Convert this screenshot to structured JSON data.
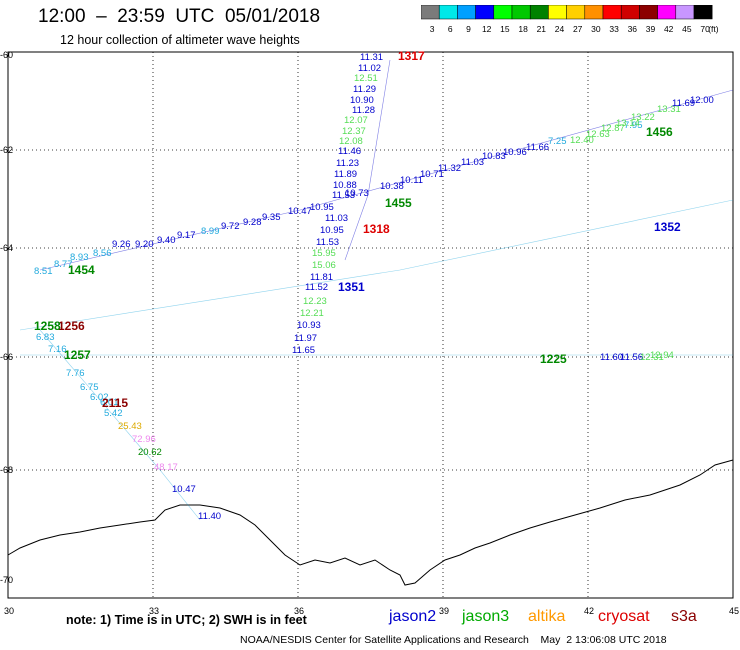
{
  "header": {
    "title": "12:00  –  23:59  UTC  05/01/2018",
    "subtitle": "12 hour collection of altimeter wave heights"
  },
  "colorbar": {
    "unit": "(ft)",
    "labels": [
      "3",
      "6",
      "9",
      "12",
      "15",
      "18",
      "21",
      "24",
      "27",
      "30",
      "33",
      "36",
      "39",
      "42",
      "45",
      "70"
    ],
    "colors": [
      "#7b7b7b",
      "#00e8e8",
      "#00a0ff",
      "#0000ff",
      "#00ff00",
      "#00c800",
      "#008200",
      "#ffff00",
      "#ffd000",
      "#ff9000",
      "#ff0000",
      "#d00000",
      "#8c0000",
      "#ff00ff",
      "#c896ff",
      "#000000"
    ]
  },
  "map": {
    "lat_labels": [
      "-60",
      "-62",
      "-64",
      "-66",
      "-68",
      "-70"
    ],
    "lon_labels": [
      "30",
      "33",
      "36",
      "39",
      "42",
      "45"
    ],
    "values": [
      {
        "t": "11.31",
        "c": "#0000cc"
      },
      {
        "t": "11.02",
        "c": "#0000cc"
      },
      {
        "t": "12.51",
        "c": "#55dd55"
      },
      {
        "t": "11.29",
        "c": "#0000cc"
      },
      {
        "t": "10.90",
        "c": "#0000cc"
      },
      {
        "t": "11.28",
        "c": "#0000cc"
      },
      {
        "t": "12.07",
        "c": "#55dd55"
      },
      {
        "t": "12.37",
        "c": "#55dd55"
      },
      {
        "t": "12.08",
        "c": "#55dd55"
      },
      {
        "t": "11.46",
        "c": "#0000cc"
      },
      {
        "t": "11.23",
        "c": "#0000cc"
      },
      {
        "t": "11.89",
        "c": "#0000cc"
      },
      {
        "t": "10.88",
        "c": "#0000cc"
      },
      {
        "t": "11.53",
        "c": "#0000cc"
      },
      {
        "t": "11.03",
        "c": "#0000cc"
      },
      {
        "t": "10.95",
        "c": "#0000cc"
      },
      {
        "t": "11.53",
        "c": "#0000cc"
      },
      {
        "t": "15.95",
        "c": "#55dd55"
      },
      {
        "t": "15.06",
        "c": "#55dd55"
      },
      {
        "t": "11.81",
        "c": "#0000cc"
      },
      {
        "t": "11.52",
        "c": "#0000cc"
      },
      {
        "t": "12.23",
        "c": "#55dd55"
      },
      {
        "t": "12.21",
        "c": "#55dd55"
      },
      {
        "t": "10.93",
        "c": "#0000cc"
      },
      {
        "t": "11.97",
        "c": "#0000cc"
      },
      {
        "t": "11.65",
        "c": "#0000cc"
      },
      {
        "t": "8.51",
        "c": "#22aadd"
      },
      {
        "t": "8.77",
        "c": "#22aadd"
      },
      {
        "t": "8.93",
        "c": "#22aadd"
      },
      {
        "t": "8.56",
        "c": "#22aadd"
      },
      {
        "t": "9.26",
        "c": "#0000cc"
      },
      {
        "t": "9.20",
        "c": "#0000cc"
      },
      {
        "t": "9.40",
        "c": "#0000cc"
      },
      {
        "t": "9.17",
        "c": "#0000cc"
      },
      {
        "t": "8.99",
        "c": "#22aadd"
      },
      {
        "t": "9.72",
        "c": "#0000cc"
      },
      {
        "t": "9.28",
        "c": "#0000cc"
      },
      {
        "t": "9.35",
        "c": "#0000cc"
      },
      {
        "t": "10.47",
        "c": "#0000cc"
      },
      {
        "t": "10.95",
        "c": "#0000cc"
      },
      {
        "t": "10.73",
        "c": "#0000cc"
      },
      {
        "t": "10.38",
        "c": "#0000cc"
      },
      {
        "t": "10.11",
        "c": "#0000cc"
      },
      {
        "t": "10.71",
        "c": "#0000cc"
      },
      {
        "t": "11.32",
        "c": "#0000cc"
      },
      {
        "t": "11.03",
        "c": "#0000cc"
      },
      {
        "t": "10.83",
        "c": "#0000cc"
      },
      {
        "t": "10.96",
        "c": "#0000cc"
      },
      {
        "t": "11.66",
        "c": "#0000cc"
      },
      {
        "t": "7.25",
        "c": "#22aadd"
      },
      {
        "t": "7.95",
        "c": "#22aadd"
      },
      {
        "t": "6.83",
        "c": "#22aadd"
      },
      {
        "t": "7.16",
        "c": "#22aadd"
      },
      {
        "t": "7.76",
        "c": "#22aadd"
      },
      {
        "t": "6.75",
        "c": "#22aadd"
      },
      {
        "t": "6.02",
        "c": "#22aadd"
      },
      {
        "t": "6.01",
        "c": "#22aadd"
      },
      {
        "t": "5.42",
        "c": "#22aadd"
      },
      {
        "t": "25.43",
        "c": "#ddaa00"
      },
      {
        "t": "72.96",
        "c": "#ee88ee"
      },
      {
        "t": "20.62",
        "c": "#008800"
      },
      {
        "t": "48.17",
        "c": "#ee88ee"
      },
      {
        "t": "10.47",
        "c": "#0000cc"
      },
      {
        "t": "11.40",
        "c": "#0000cc"
      },
      {
        "t": "11.60",
        "c": "#0000cc"
      },
      {
        "t": "11.56",
        "c": "#0000cc"
      },
      {
        "t": "12.31",
        "c": "#55dd55"
      },
      {
        "t": "12.94",
        "c": "#55dd55"
      },
      {
        "t": "12.40",
        "c": "#55dd55"
      },
      {
        "t": "12.63",
        "c": "#55dd55"
      },
      {
        "t": "12.87",
        "c": "#55dd55"
      },
      {
        "t": "13.14",
        "c": "#55dd55"
      },
      {
        "t": "13.22",
        "c": "#55dd55"
      },
      {
        "t": "13.31",
        "c": "#55dd55"
      },
      {
        "t": "11.69",
        "c": "#0000cc"
      },
      {
        "t": "12.00",
        "c": "#0000cc"
      }
    ],
    "passes": [
      {
        "t": "1317",
        "c": "#dd0000"
      },
      {
        "t": "1318",
        "c": "#dd0000"
      },
      {
        "t": "1455",
        "c": "#008800"
      },
      {
        "t": "1454",
        "c": "#008800"
      },
      {
        "t": "1456",
        "c": "#008800"
      },
      {
        "t": "1352",
        "c": "#0000cc"
      },
      {
        "t": "1351",
        "c": "#0000cc"
      },
      {
        "t": "1257",
        "c": "#008800"
      },
      {
        "t": "1256",
        "c": "#8b0000"
      },
      {
        "t": "1258",
        "c": "#008800"
      },
      {
        "t": "1225",
        "c": "#008800"
      },
      {
        "t": "2115",
        "c": "#8b0000"
      }
    ]
  },
  "footer": {
    "note": "note:  1) Time is in UTC;  2) SWH is in feet",
    "satellites": [
      {
        "name": "jason2",
        "color": "#0000cc"
      },
      {
        "name": "jason3",
        "color": "#00aa00"
      },
      {
        "name": "altika",
        "color": "#ff9900"
      },
      {
        "name": "cryosat",
        "color": "#dd0000"
      },
      {
        "name": "s3a",
        "color": "#8b0000"
      }
    ],
    "credit": "NOAA/NESDIS Center for Satellite Applications and Research    May  2 13:06:08 UTC 2018"
  }
}
